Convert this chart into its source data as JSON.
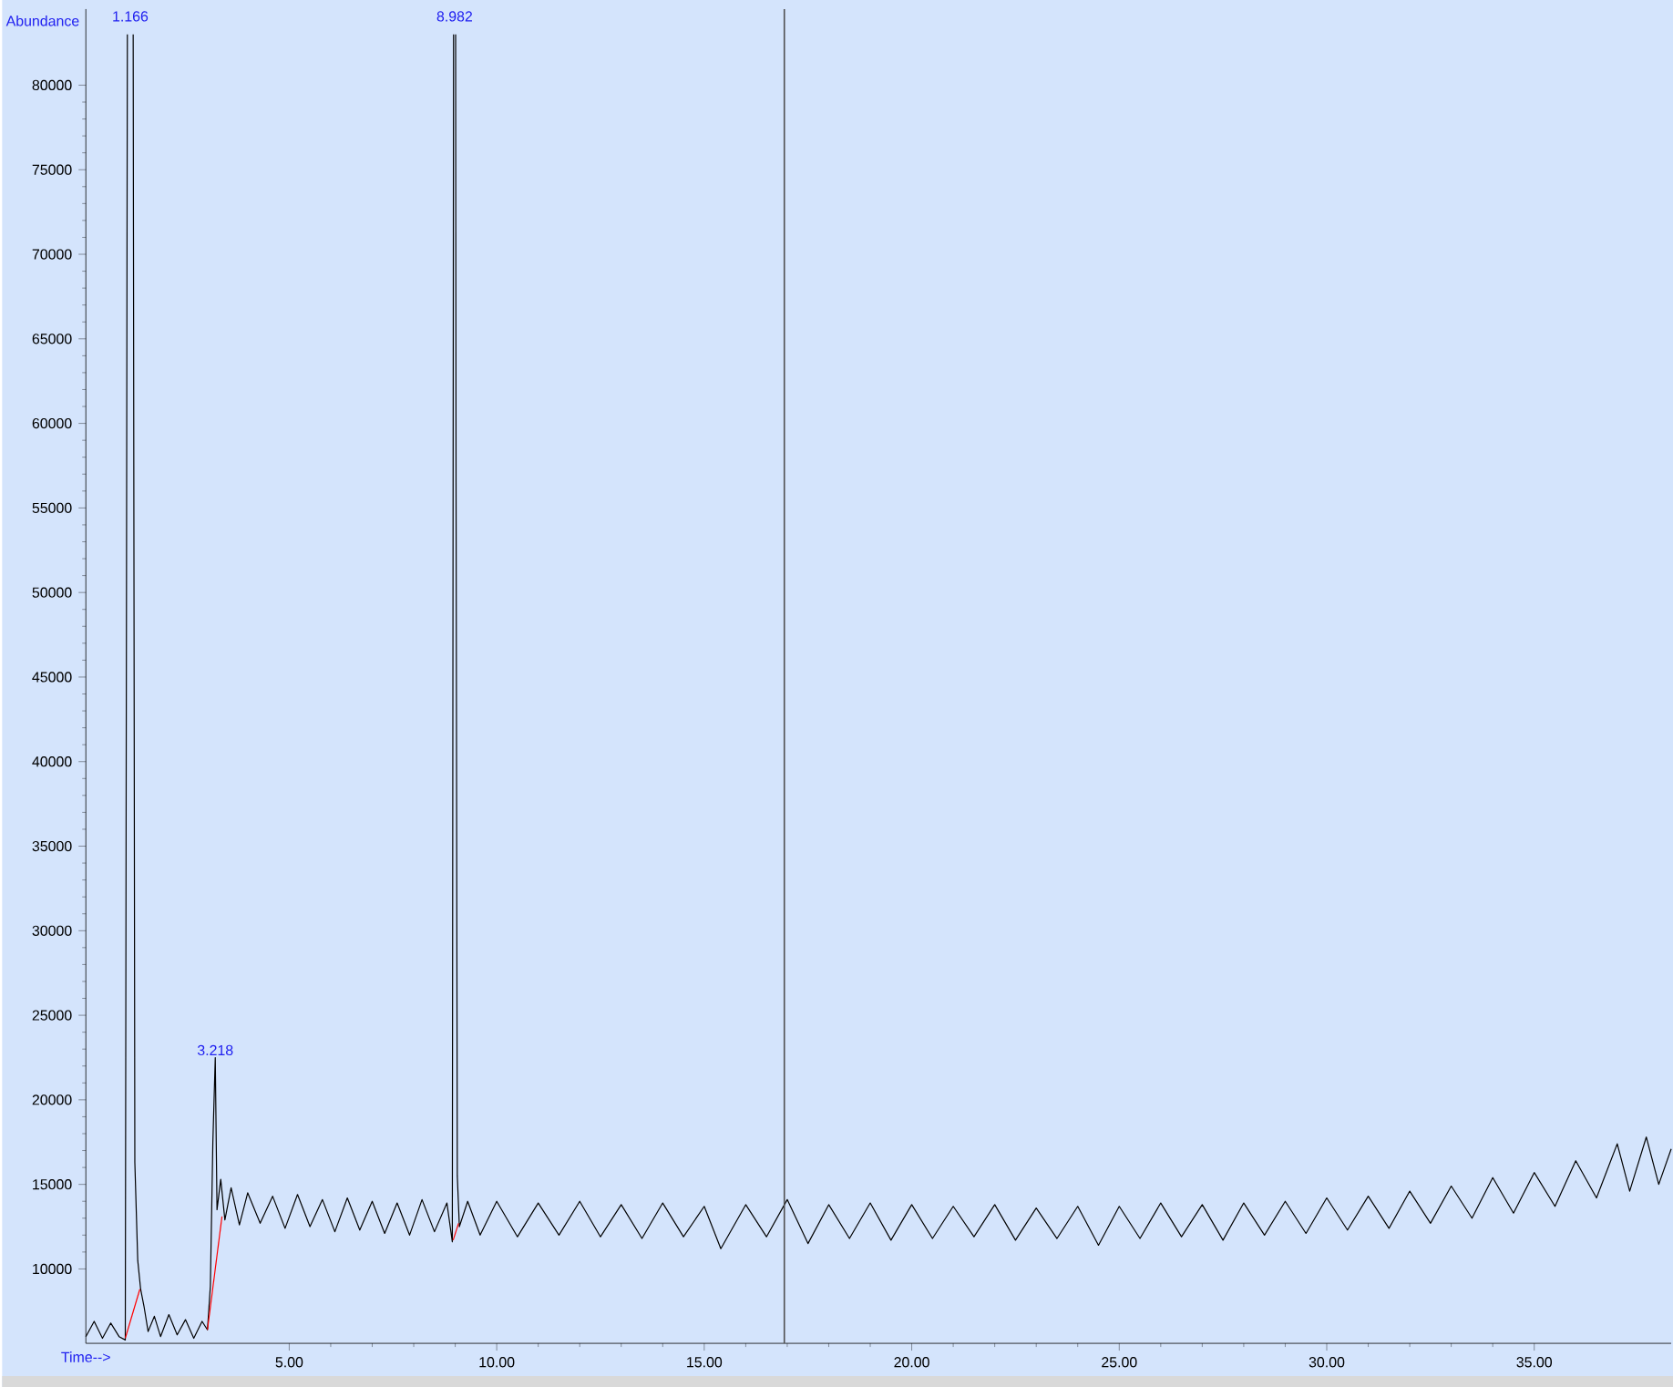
{
  "chart_data": {
    "type": "line",
    "xlabel": "Time-->",
    "ylabel": "Abundance",
    "xlim": [
      0.1,
      38.3
    ],
    "ylim": [
      5600,
      84500
    ],
    "xticks": [
      {
        "value": 5,
        "label": "5.00"
      },
      {
        "value": 10,
        "label": "10.00"
      },
      {
        "value": 15,
        "label": "15.00"
      },
      {
        "value": 20,
        "label": "20.00"
      },
      {
        "value": 25,
        "label": "25.00"
      },
      {
        "value": 30,
        "label": "30.00"
      },
      {
        "value": 35,
        "label": "35.00"
      }
    ],
    "yticks": [
      10000,
      15000,
      20000,
      25000,
      30000,
      35000,
      40000,
      45000,
      50000,
      55000,
      60000,
      65000,
      70000,
      75000,
      80000
    ],
    "grid": false,
    "legend": false,
    "marker": "none",
    "line_style": "solid",
    "ref_lines": [
      {
        "axis": "x",
        "value": 16.93,
        "color": "#505050"
      }
    ],
    "annotations": [
      "1.166",
      {
        "text": "3.218",
        "x": 3.218,
        "y": 22500
      },
      "8.982"
    ],
    "series": [
      {
        "color": "#000000",
        "x": [
          0.1,
          0.3,
          0.5,
          0.7,
          0.9,
          1.05,
          1.1,
          1.12,
          1.17,
          1.22,
          1.24,
          1.28,
          1.35,
          1.42,
          1.5,
          1.6,
          1.75,
          1.9,
          2.1,
          2.3,
          2.5,
          2.7,
          2.9,
          3.03,
          3.1,
          3.16,
          3.218,
          3.26,
          3.35,
          3.45,
          3.6,
          3.8,
          4.0,
          4.3,
          4.6,
          4.9,
          5.2,
          5.5,
          5.8,
          6.1,
          6.4,
          6.7,
          7.0,
          7.3,
          7.6,
          7.9,
          8.2,
          8.5,
          8.8,
          8.93,
          8.96,
          8.97,
          9.0,
          9.01,
          9.02,
          9.05,
          9.1,
          9.3,
          9.6,
          10.0,
          10.5,
          11.0,
          11.5,
          12.0,
          12.5,
          13.0,
          13.5,
          14.0,
          14.5,
          15.0,
          15.4,
          16.0,
          16.5,
          17.0,
          17.5,
          18.0,
          18.5,
          19.0,
          19.5,
          20.0,
          20.5,
          21.0,
          21.5,
          22.0,
          22.5,
          23.0,
          23.5,
          24.0,
          24.5,
          25.0,
          25.5,
          26.0,
          26.5,
          27.0,
          27.5,
          28.0,
          28.5,
          29.0,
          29.5,
          30.0,
          30.5,
          31.0,
          31.5,
          32.0,
          32.5,
          33.0,
          33.5,
          34.0,
          34.5,
          35.0,
          35.5,
          36.0,
          36.5,
          37.0,
          37.3,
          37.7,
          38.0,
          38.3
        ],
        "values": [
          6000,
          6900,
          5900,
          6800,
          6000,
          5800,
          83000,
          null,
          null,
          null,
          83000,
          16300,
          10500,
          8800,
          7800,
          6300,
          7200,
          6000,
          7300,
          6100,
          7000,
          5900,
          6900,
          6400,
          9000,
          17500,
          22500,
          13500,
          15300,
          12900,
          14800,
          12600,
          14500,
          12700,
          14300,
          12400,
          14400,
          12500,
          14100,
          12200,
          14200,
          12300,
          14000,
          12100,
          13900,
          12000,
          14100,
          12200,
          13900,
          11600,
          83000,
          null,
          null,
          83000,
          56500,
          15500,
          12500,
          14000,
          12000,
          14000,
          11900,
          13900,
          12000,
          14000,
          11900,
          13800,
          11800,
          13900,
          11900,
          13700,
          11200,
          13800,
          11900,
          14100,
          11500,
          13800,
          11800,
          13900,
          11700,
          13800,
          11800,
          13700,
          11900,
          13800,
          11700,
          13600,
          11800,
          13700,
          11400,
          13700,
          11800,
          13900,
          11900,
          13800,
          11700,
          13900,
          12000,
          14000,
          12100,
          14200,
          12300,
          14300,
          12400,
          14600,
          12700,
          14900,
          13000,
          15400,
          13300,
          15700,
          13700,
          16400,
          14200,
          17400,
          14600,
          17800,
          15000,
          17100
        ]
      },
      {
        "color": "#ff0000",
        "x": [
          1.05,
          1.4
        ],
        "values": [
          5900,
          8800
        ]
      },
      {
        "color": "#ff0000",
        "x": [
          3.03,
          3.38
        ],
        "values": [
          6400,
          13100
        ]
      },
      {
        "color": "#ff0000",
        "x": [
          8.95,
          9.08
        ],
        "values": [
          11700,
          12700
        ]
      }
    ]
  }
}
